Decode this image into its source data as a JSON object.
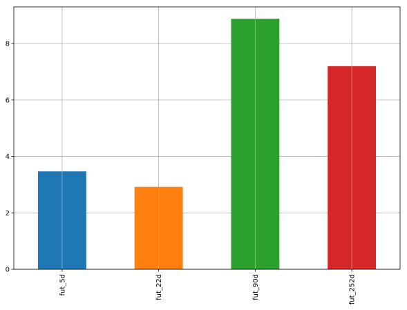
{
  "chart_data": {
    "type": "bar",
    "categories": [
      "fut_5d",
      "fut_22d",
      "fut_90d",
      "fut_252d"
    ],
    "values": [
      3.47,
      2.92,
      8.88,
      7.2
    ],
    "colors": [
      "#1f77b4",
      "#ff7f0e",
      "#2ca02c",
      "#d62728"
    ],
    "title": "",
    "xlabel": "",
    "ylabel": "",
    "ylim": [
      0,
      9.3
    ],
    "yticks": [
      0,
      2,
      4,
      6,
      8
    ],
    "ytick_labels": [
      "0",
      "2",
      "4",
      "6",
      "8"
    ],
    "grid": true,
    "xtick_rotation": "vertical"
  }
}
